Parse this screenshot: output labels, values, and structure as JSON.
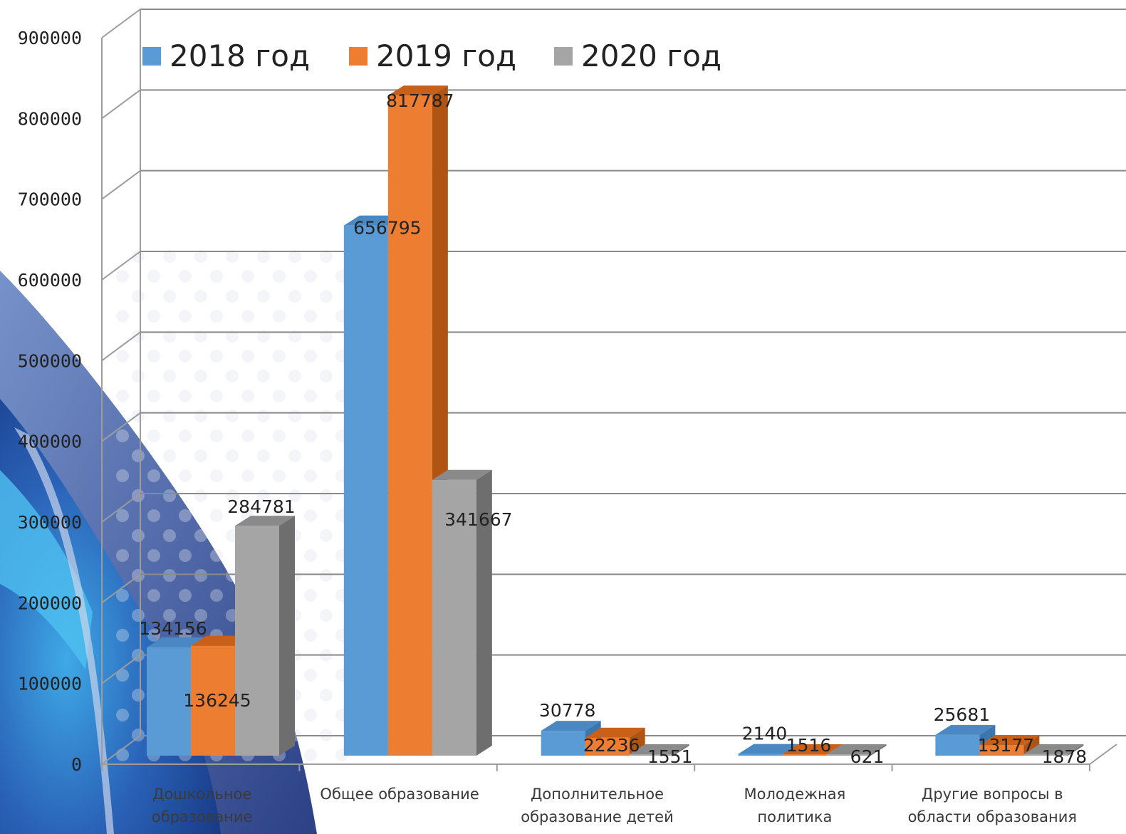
{
  "chart_data": {
    "type": "bar",
    "categories": [
      [
        "Дошкольное",
        "образование"
      ],
      [
        "Общее образование"
      ],
      [
        "Дополнительное",
        "образование детей"
      ],
      [
        "Молодежная",
        "политика"
      ],
      [
        "Другие вопросы в",
        "области образования"
      ]
    ],
    "series": [
      {
        "name": "2018 год",
        "values": [
          134156,
          656795,
          30778,
          2140,
          25681
        ]
      },
      {
        "name": "2019 год",
        "values": [
          136245,
          817787,
          22236,
          1516,
          13177
        ]
      },
      {
        "name": "2020 год",
        "values": [
          284781,
          341667,
          1551,
          621,
          1878
        ]
      }
    ],
    "ylim": [
      0,
      900000
    ],
    "yticks": [
      "0",
      "100000",
      "200000",
      "300000",
      "400000",
      "500000",
      "600000",
      "700000",
      "800000",
      "900000"
    ],
    "grid": true,
    "legend": "top-left",
    "colors": {
      "2018 год": {
        "front": "#5b9bd5",
        "side": "#3b76ad",
        "top": "#4a88c4"
      },
      "2019 год": {
        "front": "#ed7d31",
        "side": "#b05414",
        "top": "#c9601a"
      },
      "2020 год": {
        "front": "#a5a5a5",
        "side": "#6e6e6e",
        "top": "#8a8a8a"
      }
    }
  }
}
